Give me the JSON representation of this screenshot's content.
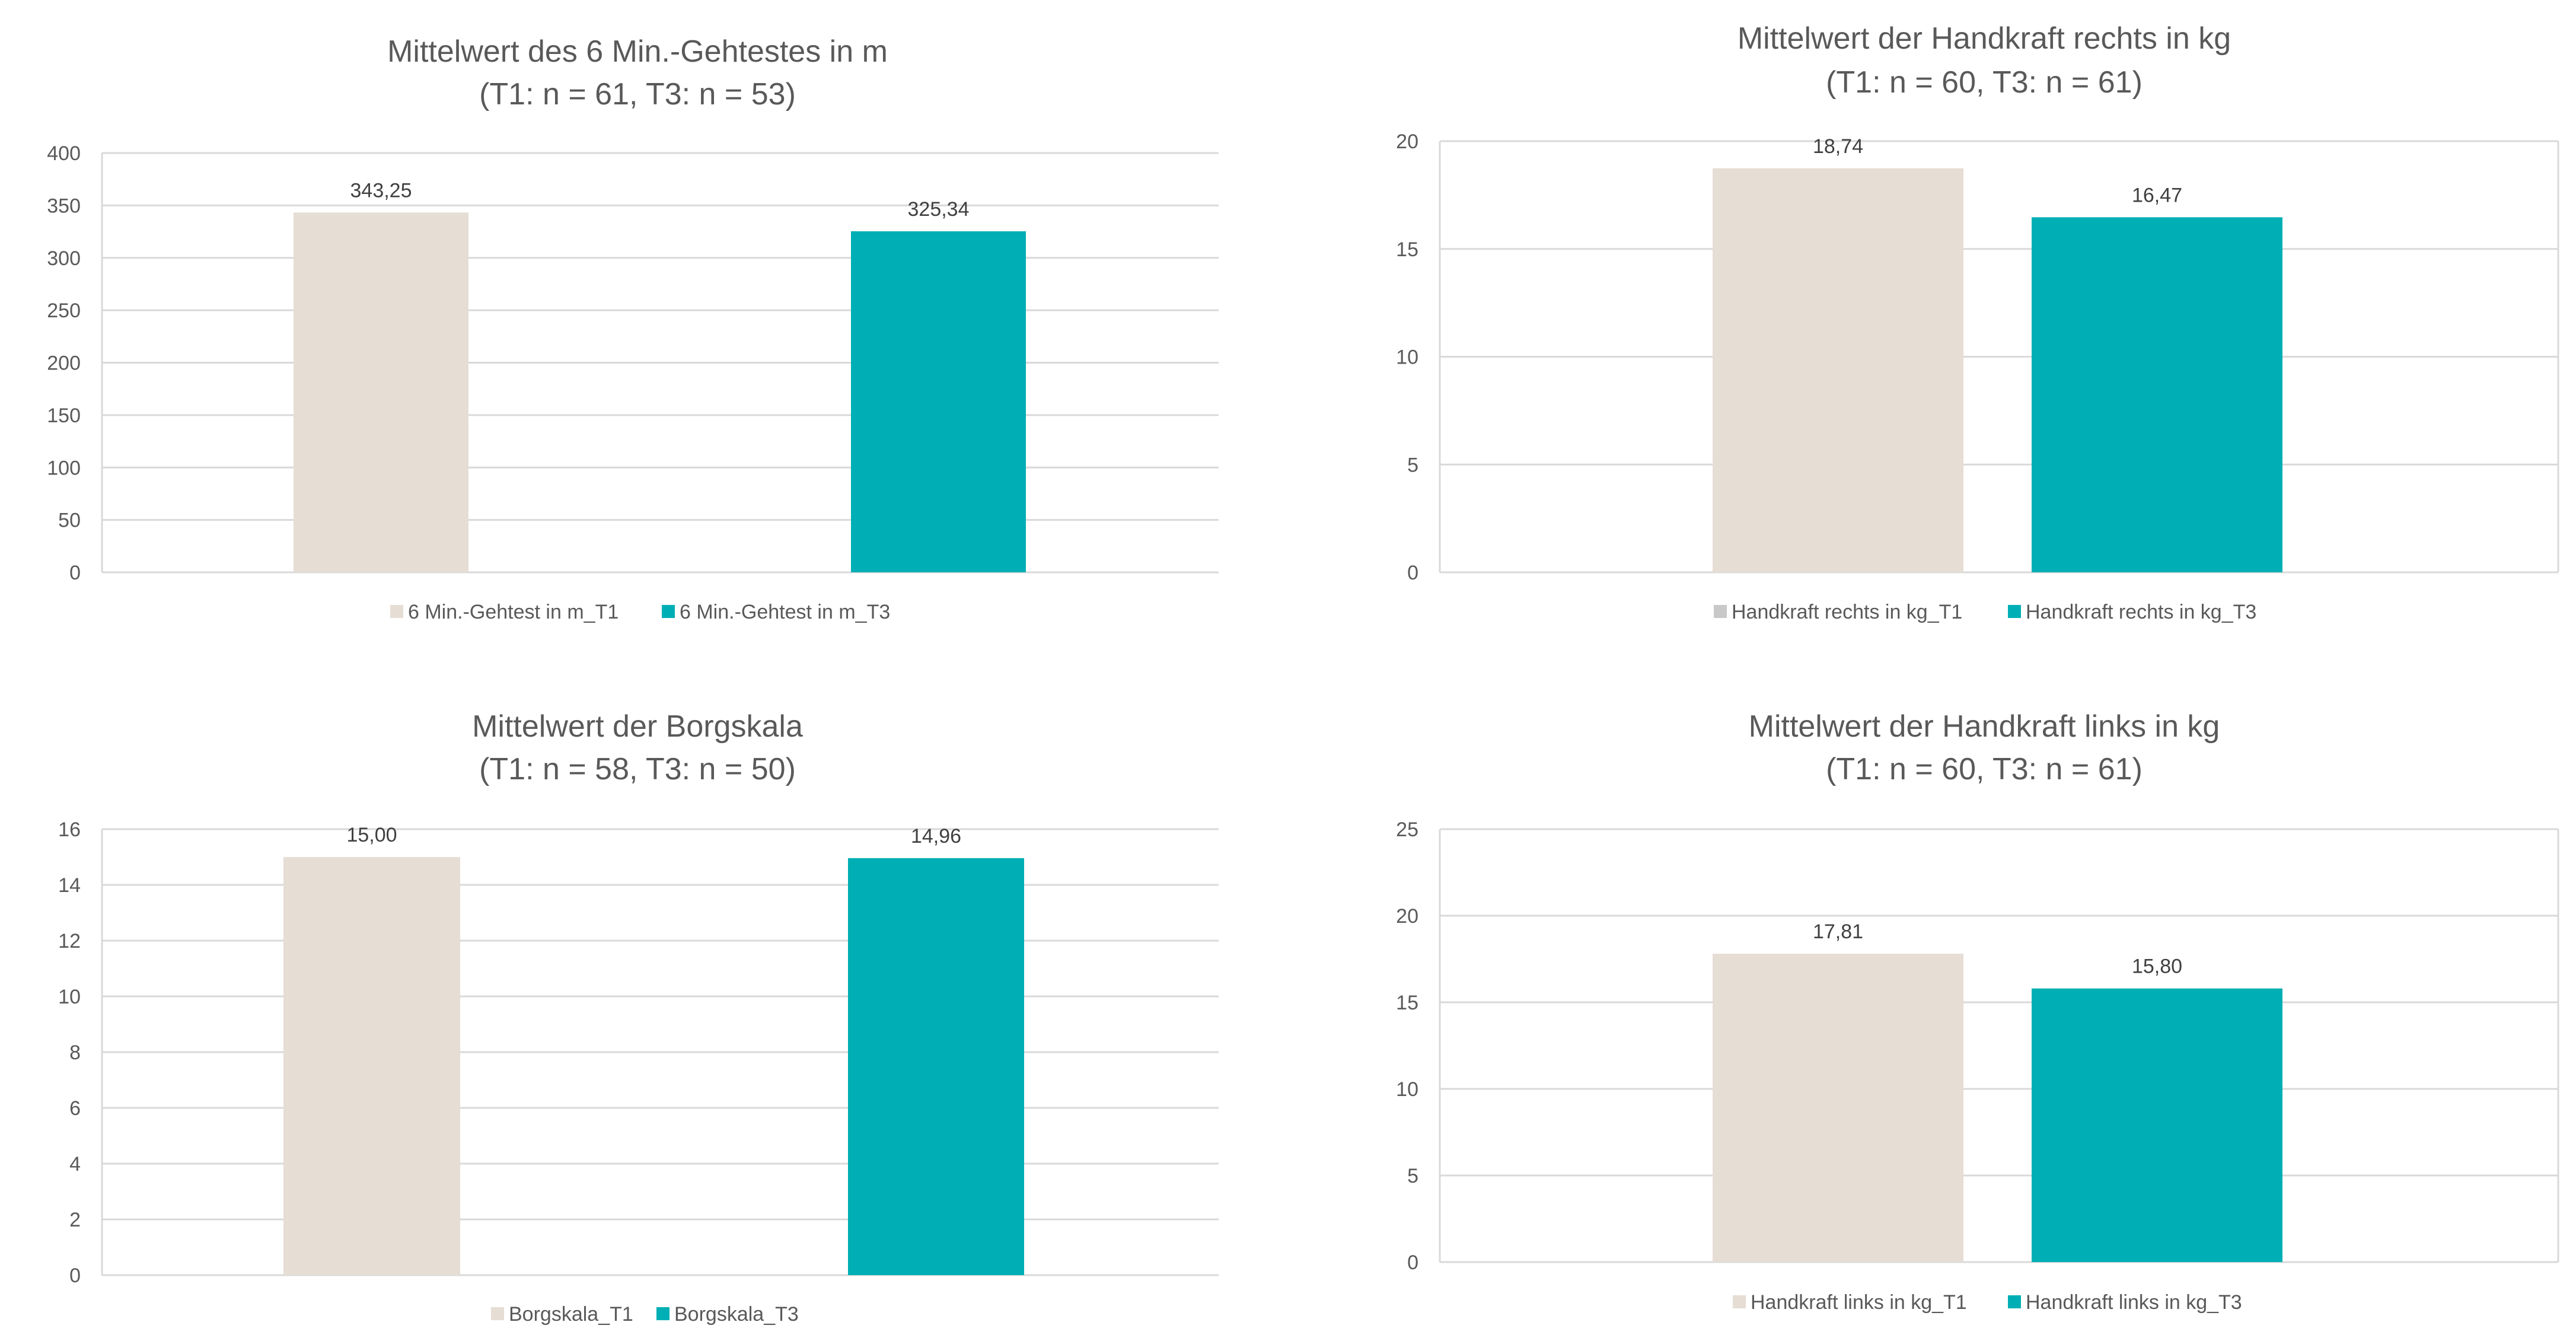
{
  "colors": {
    "t1": "#E6DDD4",
    "t3": "#00AFB5",
    "legend_t1_alt": "#C8C8C8",
    "grid": "#D9D9D9",
    "text": "#595959"
  },
  "chart_data": [
    {
      "type": "bar",
      "title": "Mittelwert des 6 Min.-Gehtestes in m",
      "subtitle": "(T1: n = 61, T3: n = 53)",
      "ylim": [
        0,
        400
      ],
      "yticks": [
        "0",
        "50",
        "100",
        "150",
        "200",
        "250",
        "300",
        "350",
        "400"
      ],
      "series": [
        {
          "name": "6 Min.-Gehtest in m_T1",
          "value": 343.25,
          "label": "343,25"
        },
        {
          "name": "6 Min.-Gehtest in m_T3",
          "value": 325.34,
          "label": "325,34"
        }
      ]
    },
    {
      "type": "bar",
      "title": "Mittelwert der Handkraft rechts in kg",
      "subtitle": "(T1: n = 60, T3: n = 61)",
      "ylim": [
        0,
        20
      ],
      "yticks": [
        "0",
        "5",
        "10",
        "15",
        "20"
      ],
      "series": [
        {
          "name": "Handkraft rechts in kg_T1",
          "value": 18.74,
          "label": "18,74"
        },
        {
          "name": "Handkraft rechts in kg_T3",
          "value": 16.47,
          "label": "16,47"
        }
      ]
    },
    {
      "type": "bar",
      "title": "Mittelwert der Borgskala",
      "subtitle": "(T1: n = 58, T3: n = 50)",
      "ylim": [
        0,
        16
      ],
      "yticks": [
        "0",
        "2",
        "4",
        "6",
        "8",
        "10",
        "12",
        "14",
        "16"
      ],
      "series": [
        {
          "name": "Borgskala_T1",
          "value": 15.0,
          "label": "15,00"
        },
        {
          "name": "Borgskala_T3",
          "value": 14.96,
          "label": "14,96"
        }
      ]
    },
    {
      "type": "bar",
      "title": "Mittelwert der Handkraft links in kg",
      "subtitle": "(T1: n = 60, T3: n = 61)",
      "ylim": [
        0,
        25
      ],
      "yticks": [
        "0",
        "5",
        "10",
        "15",
        "20",
        "25"
      ],
      "series": [
        {
          "name": "Handkraft links in kg_T1",
          "value": 17.81,
          "label": "17,81"
        },
        {
          "name": "Handkraft links in kg_T3",
          "value": 15.8,
          "label": "15,80"
        }
      ]
    }
  ]
}
